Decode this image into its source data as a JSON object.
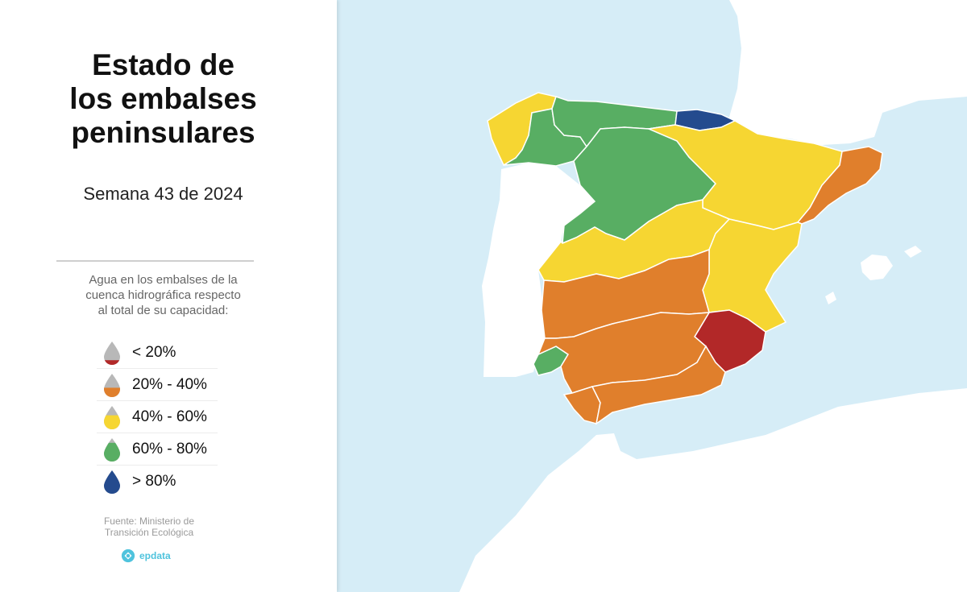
{
  "title": {
    "line1": "Estado de",
    "line2": "los embalses",
    "line3": "peninsulares"
  },
  "subtitle": "Semana 43 de 2024",
  "legend": {
    "description": {
      "line1": "Agua en los embalses de la",
      "line2": "cuenca hidrográfica respecto",
      "line3": "al total de su capacidad:"
    },
    "items": [
      {
        "label": "< 20%",
        "color": "#b22828",
        "fill_level": 0.2
      },
      {
        "label": "20% - 40%",
        "color": "#e07f2c",
        "fill_level": 0.4
      },
      {
        "label": "40% - 60%",
        "color": "#f6d632",
        "fill_level": 0.6
      },
      {
        "label": "60% - 80%",
        "color": "#58ae63",
        "fill_level": 0.8
      },
      {
        "label": "> 80%",
        "color": "#244b8e",
        "fill_level": 1.0
      }
    ]
  },
  "source": {
    "line1": "Fuente: Ministerio de",
    "line2": "Transición Ecológica"
  },
  "brand": "epdata",
  "map": {
    "sea_color": "#d6edf7",
    "land_color": "#ffffff",
    "basins": [
      {
        "name": "Galicia Costa",
        "level": "40% - 60%",
        "color": "#f6d632"
      },
      {
        "name": "Miño-Sil",
        "level": "60% - 80%",
        "color": "#58ae63"
      },
      {
        "name": "Cantábrico",
        "level": "60% - 80%",
        "color": "#58ae63"
      },
      {
        "name": "País Vasco",
        "level": "> 80%",
        "color": "#244b8e"
      },
      {
        "name": "Duero",
        "level": "60% - 80%",
        "color": "#58ae63"
      },
      {
        "name": "Ebro",
        "level": "40% - 60%",
        "color": "#f6d632"
      },
      {
        "name": "Cataluña",
        "level": "20% - 40%",
        "color": "#e07f2c"
      },
      {
        "name": "Tajo",
        "level": "40% - 60%",
        "color": "#f6d632"
      },
      {
        "name": "Júcar",
        "level": "40% - 60%",
        "color": "#f6d632"
      },
      {
        "name": "Guadiana",
        "level": "20% - 40%",
        "color": "#e07f2c"
      },
      {
        "name": "Segura",
        "level": "< 20%",
        "color": "#b22828"
      },
      {
        "name": "Tinto, Odiel y Piedras",
        "level": "60% - 80%",
        "color": "#58ae63"
      },
      {
        "name": "Guadalquivir",
        "level": "20% - 40%",
        "color": "#e07f2c"
      },
      {
        "name": "Guadalete-Barbate",
        "level": "20% - 40%",
        "color": "#e07f2c"
      },
      {
        "name": "Cuenca Mediterránea Andaluza",
        "level": "20% - 40%",
        "color": "#e07f2c"
      }
    ]
  }
}
